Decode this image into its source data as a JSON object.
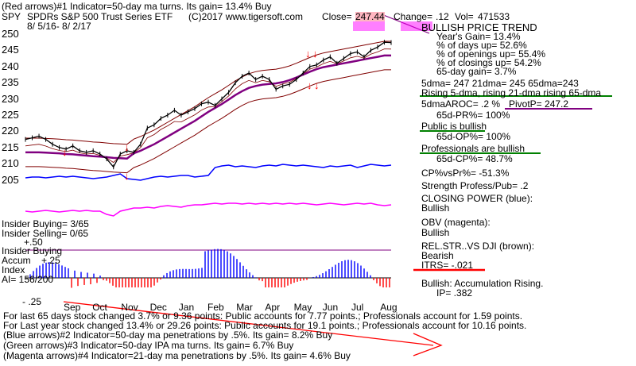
{
  "header": {
    "line1": "(Red arrows)#1 Indicator=50-day ma turns. Its gain= 13.4% Buy",
    "ticker": "SPY",
    "fund_name": "SPDRs S&P 500 Trust Series ETF",
    "copyright": "(C)2017 www.tigersoft.com",
    "close_label": "Close=",
    "close_value": "247.44",
    "change_label": "Change=",
    "change_value": ".12",
    "vol_label": "Vol=",
    "vol_value": "471533",
    "date_range": "8/ 5/16- 8/ 2/17"
  },
  "right_panel": {
    "title": "BULLISH PRICE TREND",
    "years_gain": "Year's Gain= 13.4%",
    "pct_days_up": "% of days up= 52.6%",
    "pct_openings_up": "% of openings up= 55.4%",
    "pct_closings_up": "% of closings up= 54.2%",
    "day65_gain": "65-day gain= 3.7%",
    "mas": "5dma= 247 21dma= 245 65dma=243",
    "rising": "Rising 5-dma, rising 21-dma rising 65-dma",
    "aroc": "5dmaAROC= .2 %",
    "pivot": "PivotP= 247.2",
    "pr65": "65d-PR%= 100%",
    "public_bullish": "Public is bullish",
    "op65": "65d-OP%= 100%",
    "pros_bullish": "Professionals are bullish",
    "cp65": "65d-CP%= 48.7%",
    "cp_vs_pr": "CP%vsPr%= -51.3%",
    "strength": "Strength Profess/Pub= .2",
    "closing_power": "CLOSING POWER (blue):",
    "closing_power_val": "Bullish",
    "obv": "OBV (magenta):",
    "obv_val": "Bullish",
    "relstr": "REL.STR..VS DJI (brown):",
    "relstr_val": "Bearish",
    "itrs": "ITRS= -.021",
    "accum": "Bullish: Accumulation Rising.",
    "ip": "IP= .382"
  },
  "left_labels": {
    "insider_buying": "Insider Buying= 3/65",
    "insider_selling": "Insider Selling= 0/65",
    "plus50": "+.50",
    "insider_buying2": "Insider Buying",
    "accum": "Accum",
    "plus25": "+.25",
    "index": "Index",
    "ai": "AI= 156/200",
    "minus25": "- .25"
  },
  "footer": {
    "line1": "For last 65 days stock changed  3.7% or  9.36 points:  Public accounts for  7.77 points.;  Professionals account for  1.59 points.",
    "line2": "For Last year stock changed  13.4% or  29.26 points:  Public accounts for  19.1 points.;  Professionals account for  10.16 points.",
    "line3": "(Blue arrows)#2 Indicator=50-day ma penetrations by .5%. Its gain= 8.2% Buy",
    "line4": "(Green arrows)#3 Indicator=50-day IPA ma turns. Its gain= 6.7% Buy",
    "line5": "(Magenta arrows)#4 Indicator=21-day ma penetrations by .5%. Its gain= 4.6% Buy"
  },
  "colors": {
    "price": "#000000",
    "ma50": "#800080",
    "band": "#800000",
    "closing_power": "#0000ff",
    "obv": "#ff00ff",
    "accum_bar": "#0000ff",
    "accum_neg": "#ff0000",
    "green_underline": "#008000",
    "red_arrow": "#ff0000"
  },
  "chart_data": {
    "type": "line",
    "title": "SPDRs S&P 500 Trust Series ETF",
    "y_ticks": [
      250,
      245,
      240,
      235,
      230,
      225,
      220,
      215,
      210,
      205
    ],
    "ylim": [
      204,
      252
    ],
    "x_ticks": [
      "Sep",
      "Oct",
      "Nov",
      "Dec",
      "Jan",
      "Feb",
      "Mar",
      "Apr",
      "May",
      "Jun",
      "Jul",
      "Aug"
    ],
    "series": [
      {
        "values": [
          217.5,
          218,
          218.5,
          217.5,
          216,
          215,
          214.5,
          215.5,
          214,
          213.5,
          214,
          213,
          211.5,
          209,
          213,
          214,
          213.5,
          216,
          221,
          222,
          224,
          225,
          226.5,
          225,
          226,
          227,
          228.5,
          229,
          228,
          230,
          232,
          235,
          237,
          238,
          236,
          237,
          236,
          233,
          234,
          234.5,
          236,
          238,
          240,
          240.5,
          242,
          243,
          241,
          242.5,
          244,
          244.5,
          243,
          245,
          246,
          247.5,
          247.4
        ]
      },
      {
        "values": [
          213.5,
          213.5,
          213.5,
          213.4,
          213.3,
          213.2,
          213.0,
          212.9,
          212.7,
          212.5,
          212.3,
          212.2,
          212.0,
          211.8,
          211.7,
          211.6,
          213.2,
          214.0,
          215.0,
          216.0,
          217.2,
          218.4,
          219.6,
          220.8,
          222.0,
          223.2,
          224.6,
          226.0,
          227.2,
          228.4,
          229.8,
          231.2,
          232.4,
          233.4,
          234.0,
          234.4,
          234.6,
          234.8,
          235.2,
          235.8,
          236.6,
          237.5,
          238.4,
          239.2,
          239.8,
          240.2,
          240.6,
          241.0,
          241.4,
          241.8,
          242.2,
          242.6,
          243.0,
          243.4,
          243.4
        ]
      }
    ]
  }
}
